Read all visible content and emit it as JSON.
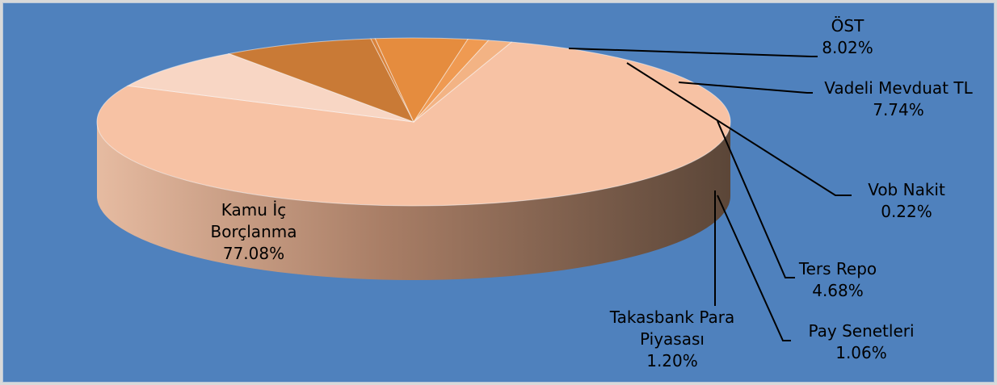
{
  "chart_data": {
    "type": "pie3d",
    "categories": [
      "Kamu İç Borçlanma",
      "ÖST",
      "Vadeli Mevduat TL",
      "Vob Nakit",
      "Ters Repo",
      "Pay Senetleri",
      "Takasbank Para Piyasası"
    ],
    "values": [
      77.08,
      8.02,
      7.74,
      0.22,
      4.68,
      1.06,
      1.2
    ],
    "value_labels": [
      "77.08%",
      "8.02%",
      "7.74%",
      "0.22%",
      "4.68%",
      "1.06%",
      "1.20%"
    ],
    "colors": [
      "#f7c2a4",
      "#f8d6c4",
      "#c97a36",
      "#d9823a",
      "#e58c3e",
      "#ef9a52",
      "#f3b384"
    ]
  }
}
